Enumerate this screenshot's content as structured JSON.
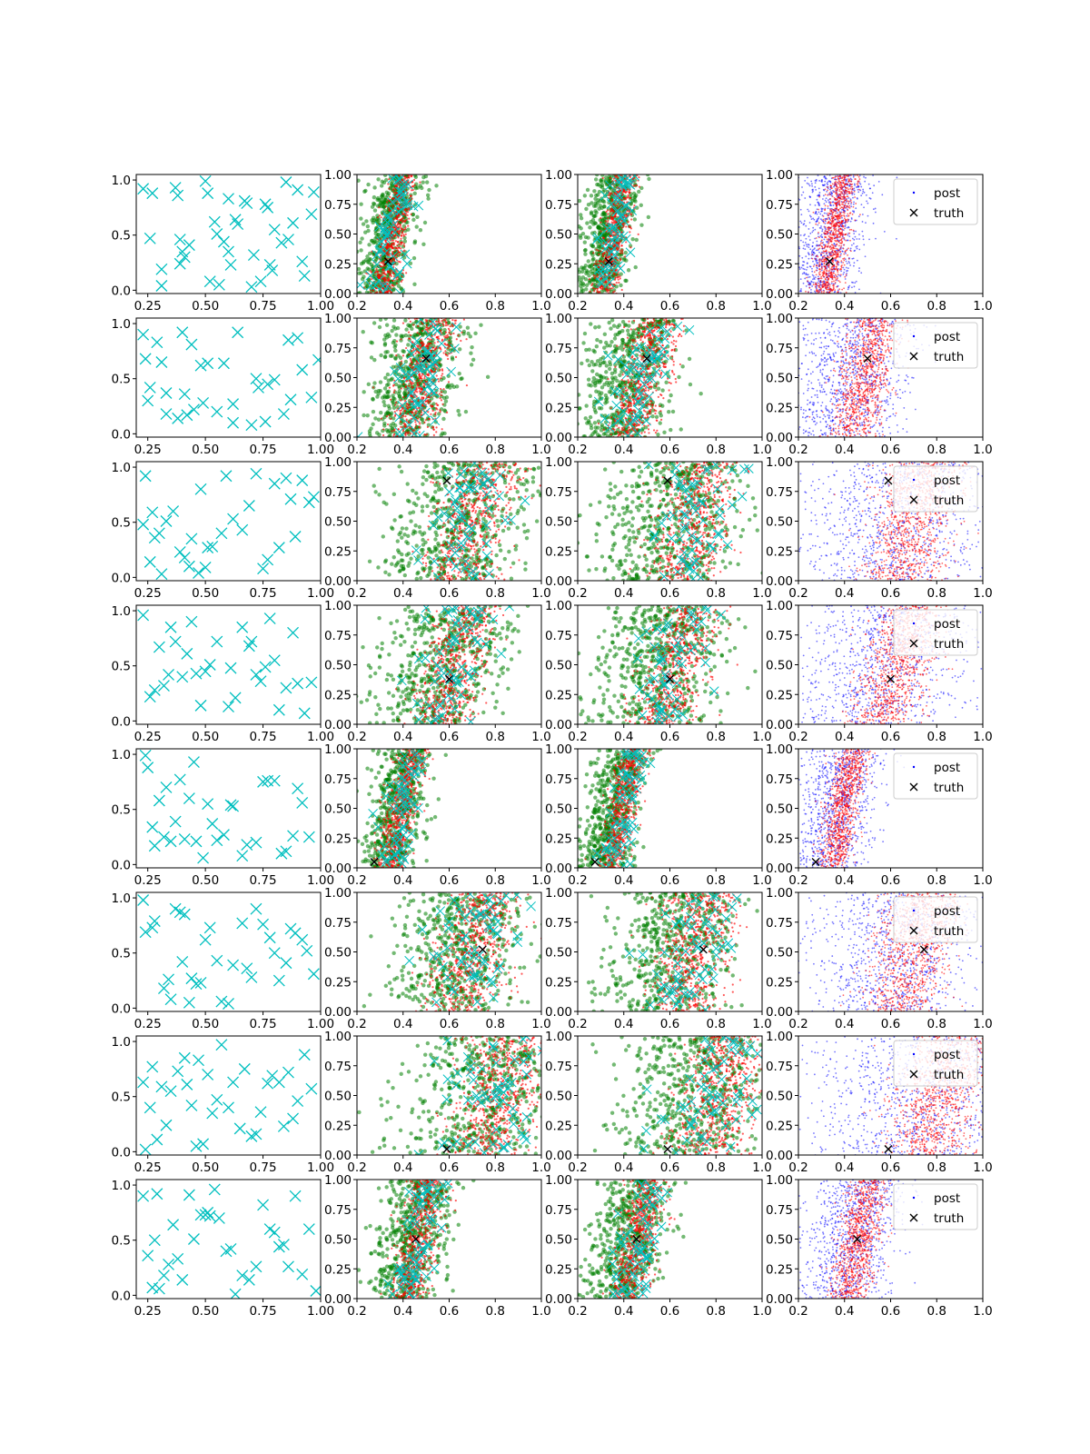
{
  "figure": {
    "layout": "8 rows x 4 columns grid of scatter subplots"
  },
  "colors": {
    "design_points": "#00bfbf",
    "post": "#0000ff",
    "red_samples": "#ff0000",
    "green_samples": "#008000",
    "truth": "#000000",
    "axes": "#000000"
  },
  "chart_data": {
    "type": "scatter",
    "columns": [
      {
        "col": 0,
        "xlim": [
          0.2,
          1.0
        ],
        "ylim": [
          -0.03,
          1.05
        ],
        "xticks": [
          "0.25",
          "0.50",
          "0.75",
          "1.00"
        ],
        "yticks": [
          "0.0",
          "0.5",
          "1.0"
        ],
        "content": "cyan x markers"
      },
      {
        "col": 1,
        "xlim": [
          0.2,
          1.0
        ],
        "ylim": [
          0.0,
          1.0
        ],
        "xticks": [
          "0.2",
          "0.4",
          "0.6",
          "0.8",
          "1.0"
        ],
        "yticks": [
          "0.00",
          "0.25",
          "0.50",
          "0.75",
          "1.00"
        ],
        "content": "green dots, red dots, cyan x, truth"
      },
      {
        "col": 2,
        "xlim": [
          0.2,
          1.0
        ],
        "ylim": [
          0.0,
          1.0
        ],
        "xticks": [
          "0.2",
          "0.4",
          "0.6",
          "0.8",
          "1.0"
        ],
        "yticks": [
          "0.00",
          "0.25",
          "0.50",
          "0.75",
          "1.00"
        ],
        "content": "green dots, red dots, cyan x, truth"
      },
      {
        "col": 3,
        "xlim": [
          0.2,
          1.0
        ],
        "ylim": [
          0.0,
          1.0
        ],
        "xticks": [
          "0.2",
          "0.4",
          "0.6",
          "0.8",
          "1.0"
        ],
        "yticks": [
          "0.00",
          "0.25",
          "0.50",
          "0.75",
          "1.00"
        ],
        "content": "blue post dots, red dots, truth, legend"
      }
    ],
    "legend": {
      "entries": [
        "post",
        "truth"
      ],
      "placement": "upper right of column 4"
    },
    "rows": [
      {
        "row": 1,
        "truth": [
          0.335,
          0.27
        ],
        "band_slope": 0.09,
        "band_center_y0": 0.31,
        "band_width": 0.07,
        "spread": 0.04
      },
      {
        "row": 2,
        "truth": [
          0.5,
          0.66
        ],
        "band_slope": 0.12,
        "band_center_y0": 0.42,
        "band_width": 0.13,
        "spread": 0.06
      },
      {
        "row": 3,
        "truth": [
          0.59,
          0.84
        ],
        "band_slope": 0.12,
        "band_center_y0": 0.63,
        "band_width": 0.2,
        "spread": 0.1
      },
      {
        "row": 4,
        "truth": [
          0.6,
          0.38
        ],
        "band_slope": 0.14,
        "band_center_y0": 0.55,
        "band_width": 0.17,
        "spread": 0.09
      },
      {
        "row": 5,
        "truth": [
          0.275,
          0.05
        ],
        "band_slope": 0.1,
        "band_center_y0": 0.34,
        "band_width": 0.08,
        "spread": 0.04
      },
      {
        "row": 6,
        "truth": [
          0.745,
          0.52
        ],
        "band_slope": 0.12,
        "band_center_y0": 0.63,
        "band_width": 0.19,
        "spread": 0.09
      },
      {
        "row": 7,
        "truth": [
          0.59,
          0.05
        ],
        "band_slope": 0.12,
        "band_center_y0": 0.74,
        "band_width": 0.22,
        "spread": 0.11
      },
      {
        "row": 8,
        "truth": [
          0.455,
          0.5
        ],
        "band_slope": 0.1,
        "band_center_y0": 0.41,
        "band_width": 0.1,
        "spread": 0.05
      }
    ],
    "design_points": [
      [
        [
          0.23,
          0.92
        ],
        [
          0.27,
          0.88
        ],
        [
          0.26,
          0.47
        ],
        [
          0.31,
          0.19
        ],
        [
          0.31,
          0.04
        ],
        [
          0.37,
          0.93
        ],
        [
          0.38,
          0.86
        ],
        [
          0.39,
          0.46
        ],
        [
          0.4,
          0.35
        ],
        [
          0.41,
          0.3
        ],
        [
          0.39,
          0.24
        ],
        [
          0.43,
          0.41
        ],
        [
          0.5,
          0.99
        ],
        [
          0.51,
          0.88
        ],
        [
          0.52,
          0.08
        ],
        [
          0.54,
          0.62
        ],
        [
          0.55,
          0.51
        ],
        [
          0.56,
          0.05
        ],
        [
          0.58,
          0.44
        ],
        [
          0.6,
          0.83
        ],
        [
          0.6,
          0.35
        ],
        [
          0.61,
          0.23
        ],
        [
          0.63,
          0.64
        ],
        [
          0.64,
          0.6
        ],
        [
          0.67,
          0.81
        ],
        [
          0.68,
          0.79
        ],
        [
          0.7,
          0.03
        ],
        [
          0.71,
          0.32
        ],
        [
          0.74,
          0.08
        ],
        [
          0.76,
          0.78
        ],
        [
          0.77,
          0.75
        ],
        [
          0.78,
          0.23
        ],
        [
          0.79,
          0.18
        ],
        [
          0.8,
          0.55
        ],
        [
          0.83,
          0.43
        ],
        [
          0.85,
          0.98
        ],
        [
          0.86,
          0.46
        ],
        [
          0.88,
          0.61
        ],
        [
          0.9,
          0.91
        ],
        [
          0.92,
          0.26
        ],
        [
          0.93,
          0.13
        ],
        [
          0.96,
          0.69
        ],
        [
          0.97,
          0.89
        ]
      ],
      [
        [
          0.23,
          0.9
        ],
        [
          0.24,
          0.68
        ],
        [
          0.25,
          0.3
        ],
        [
          0.26,
          0.42
        ],
        [
          0.29,
          0.83
        ],
        [
          0.31,
          0.65
        ],
        [
          0.33,
          0.18
        ],
        [
          0.33,
          0.37
        ],
        [
          0.38,
          0.14
        ],
        [
          0.4,
          0.92
        ],
        [
          0.41,
          0.36
        ],
        [
          0.42,
          0.17
        ],
        [
          0.44,
          0.81
        ],
        [
          0.45,
          0.22
        ],
        [
          0.48,
          0.62
        ],
        [
          0.49,
          0.28
        ],
        [
          0.51,
          0.64
        ],
        [
          0.55,
          0.2
        ],
        [
          0.58,
          0.64
        ],
        [
          0.62,
          0.1
        ],
        [
          0.62,
          0.27
        ],
        [
          0.64,
          0.92
        ],
        [
          0.7,
          0.08
        ],
        [
          0.72,
          0.5
        ],
        [
          0.73,
          0.42
        ],
        [
          0.76,
          0.11
        ],
        [
          0.77,
          0.45
        ],
        [
          0.8,
          0.49
        ],
        [
          0.84,
          0.18
        ],
        [
          0.86,
          0.85
        ],
        [
          0.87,
          0.31
        ],
        [
          0.9,
          0.87
        ],
        [
          0.92,
          0.58
        ],
        [
          0.96,
          0.33
        ],
        [
          0.99,
          0.67
        ]
      ],
      [
        [
          0.23,
          0.48
        ],
        [
          0.24,
          0.92
        ],
        [
          0.26,
          0.14
        ],
        [
          0.27,
          0.59
        ],
        [
          0.28,
          0.36
        ],
        [
          0.3,
          0.4
        ],
        [
          0.31,
          0.03
        ],
        [
          0.33,
          0.51
        ],
        [
          0.36,
          0.6
        ],
        [
          0.39,
          0.23
        ],
        [
          0.41,
          0.18
        ],
        [
          0.43,
          0.1
        ],
        [
          0.44,
          0.35
        ],
        [
          0.47,
          0.04
        ],
        [
          0.48,
          0.8
        ],
        [
          0.5,
          0.09
        ],
        [
          0.51,
          0.27
        ],
        [
          0.53,
          0.28
        ],
        [
          0.57,
          0.4
        ],
        [
          0.59,
          0.92
        ],
        [
          0.62,
          0.53
        ],
        [
          0.66,
          0.43
        ],
        [
          0.69,
          0.65
        ],
        [
          0.72,
          0.94
        ],
        [
          0.75,
          0.08
        ],
        [
          0.77,
          0.16
        ],
        [
          0.8,
          0.85
        ],
        [
          0.82,
          0.27
        ],
        [
          0.85,
          0.9
        ],
        [
          0.87,
          0.71
        ],
        [
          0.89,
          0.37
        ],
        [
          0.92,
          0.88
        ],
        [
          0.95,
          0.68
        ],
        [
          0.97,
          0.73
        ]
      ],
      [
        [
          0.23,
          0.96
        ],
        [
          0.26,
          0.22
        ],
        [
          0.28,
          0.28
        ],
        [
          0.3,
          0.67
        ],
        [
          0.32,
          0.32
        ],
        [
          0.34,
          0.42
        ],
        [
          0.35,
          0.85
        ],
        [
          0.37,
          0.72
        ],
        [
          0.4,
          0.4
        ],
        [
          0.42,
          0.61
        ],
        [
          0.44,
          0.9
        ],
        [
          0.46,
          0.43
        ],
        [
          0.48,
          0.14
        ],
        [
          0.5,
          0.45
        ],
        [
          0.52,
          0.51
        ],
        [
          0.55,
          0.72
        ],
        [
          0.6,
          0.13
        ],
        [
          0.61,
          0.48
        ],
        [
          0.63,
          0.21
        ],
        [
          0.66,
          0.85
        ],
        [
          0.69,
          0.68
        ],
        [
          0.7,
          0.72
        ],
        [
          0.72,
          0.42
        ],
        [
          0.74,
          0.36
        ],
        [
          0.76,
          0.49
        ],
        [
          0.78,
          0.93
        ],
        [
          0.8,
          0.55
        ],
        [
          0.82,
          0.1
        ],
        [
          0.85,
          0.3
        ],
        [
          0.88,
          0.8
        ],
        [
          0.9,
          0.34
        ],
        [
          0.93,
          0.07
        ],
        [
          0.96,
          0.35
        ]
      ],
      [
        [
          0.24,
          0.99
        ],
        [
          0.25,
          0.88
        ],
        [
          0.27,
          0.34
        ],
        [
          0.28,
          0.17
        ],
        [
          0.3,
          0.58
        ],
        [
          0.32,
          0.25
        ],
        [
          0.33,
          0.7
        ],
        [
          0.35,
          0.21
        ],
        [
          0.37,
          0.39
        ],
        [
          0.39,
          0.77
        ],
        [
          0.41,
          0.23
        ],
        [
          0.43,
          0.6
        ],
        [
          0.45,
          0.93
        ],
        [
          0.46,
          0.21
        ],
        [
          0.49,
          0.06
        ],
        [
          0.51,
          0.55
        ],
        [
          0.53,
          0.37
        ],
        [
          0.55,
          0.22
        ],
        [
          0.58,
          0.27
        ],
        [
          0.61,
          0.54
        ],
        [
          0.62,
          0.53
        ],
        [
          0.66,
          0.08
        ],
        [
          0.68,
          0.18
        ],
        [
          0.72,
          0.2
        ],
        [
          0.75,
          0.75
        ],
        [
          0.77,
          0.76
        ],
        [
          0.8,
          0.76
        ],
        [
          0.83,
          0.1
        ],
        [
          0.85,
          0.12
        ],
        [
          0.88,
          0.26
        ],
        [
          0.9,
          0.69
        ],
        [
          0.92,
          0.56
        ],
        [
          0.95,
          0.25
        ]
      ],
      [
        [
          0.23,
          0.98
        ],
        [
          0.24,
          0.69
        ],
        [
          0.27,
          0.73
        ],
        [
          0.28,
          0.79
        ],
        [
          0.32,
          0.18
        ],
        [
          0.34,
          0.26
        ],
        [
          0.35,
          0.08
        ],
        [
          0.37,
          0.9
        ],
        [
          0.39,
          0.87
        ],
        [
          0.4,
          0.42
        ],
        [
          0.41,
          0.85
        ],
        [
          0.43,
          0.05
        ],
        [
          0.44,
          0.27
        ],
        [
          0.46,
          0.22
        ],
        [
          0.48,
          0.23
        ],
        [
          0.5,
          0.62
        ],
        [
          0.52,
          0.73
        ],
        [
          0.55,
          0.43
        ],
        [
          0.57,
          0.06
        ],
        [
          0.6,
          0.04
        ],
        [
          0.62,
          0.39
        ],
        [
          0.66,
          0.77
        ],
        [
          0.68,
          0.36
        ],
        [
          0.7,
          0.28
        ],
        [
          0.72,
          0.9
        ],
        [
          0.75,
          0.76
        ],
        [
          0.78,
          0.64
        ],
        [
          0.8,
          0.5
        ],
        [
          0.82,
          0.25
        ],
        [
          0.85,
          0.41
        ],
        [
          0.87,
          0.72
        ],
        [
          0.89,
          0.68
        ],
        [
          0.92,
          0.62
        ],
        [
          0.94,
          0.52
        ],
        [
          0.97,
          0.31
        ]
      ],
      [
        [
          0.23,
          0.63
        ],
        [
          0.24,
          0.02
        ],
        [
          0.26,
          0.4
        ],
        [
          0.27,
          0.77
        ],
        [
          0.29,
          0.11
        ],
        [
          0.31,
          0.59
        ],
        [
          0.33,
          0.24
        ],
        [
          0.35,
          0.55
        ],
        [
          0.38,
          0.73
        ],
        [
          0.41,
          0.85
        ],
        [
          0.42,
          0.61
        ],
        [
          0.44,
          0.42
        ],
        [
          0.46,
          0.05
        ],
        [
          0.47,
          0.83
        ],
        [
          0.49,
          0.07
        ],
        [
          0.51,
          0.7
        ],
        [
          0.53,
          0.35
        ],
        [
          0.55,
          0.47
        ],
        [
          0.57,
          0.97
        ],
        [
          0.6,
          0.4
        ],
        [
          0.62,
          0.63
        ],
        [
          0.65,
          0.21
        ],
        [
          0.67,
          0.75
        ],
        [
          0.7,
          0.14
        ],
        [
          0.72,
          0.16
        ],
        [
          0.74,
          0.36
        ],
        [
          0.77,
          0.62
        ],
        [
          0.79,
          0.69
        ],
        [
          0.82,
          0.63
        ],
        [
          0.84,
          0.23
        ],
        [
          0.86,
          0.72
        ],
        [
          0.88,
          0.3
        ],
        [
          0.9,
          0.46
        ],
        [
          0.93,
          0.88
        ],
        [
          0.96,
          0.57
        ]
      ],
      [
        [
          0.23,
          0.9
        ],
        [
          0.25,
          0.36
        ],
        [
          0.27,
          0.07
        ],
        [
          0.28,
          0.5
        ],
        [
          0.29,
          0.92
        ],
        [
          0.3,
          0.06
        ],
        [
          0.32,
          0.18
        ],
        [
          0.34,
          0.28
        ],
        [
          0.36,
          0.64
        ],
        [
          0.38,
          0.33
        ],
        [
          0.4,
          0.14
        ],
        [
          0.43,
          0.91
        ],
        [
          0.45,
          0.51
        ],
        [
          0.48,
          0.73
        ],
        [
          0.5,
          0.73
        ],
        [
          0.51,
          0.75
        ],
        [
          0.52,
          0.72
        ],
        [
          0.54,
          0.96
        ],
        [
          0.56,
          0.7
        ],
        [
          0.59,
          0.4
        ],
        [
          0.61,
          0.42
        ],
        [
          0.63,
          0.01
        ],
        [
          0.66,
          0.18
        ],
        [
          0.69,
          0.14
        ],
        [
          0.72,
          0.26
        ],
        [
          0.75,
          0.82
        ],
        [
          0.78,
          0.6
        ],
        [
          0.8,
          0.57
        ],
        [
          0.82,
          0.44
        ],
        [
          0.84,
          0.46
        ],
        [
          0.86,
          0.26
        ],
        [
          0.89,
          0.9
        ],
        [
          0.92,
          0.19
        ],
        [
          0.95,
          0.6
        ],
        [
          0.98,
          0.04
        ]
      ]
    ]
  }
}
